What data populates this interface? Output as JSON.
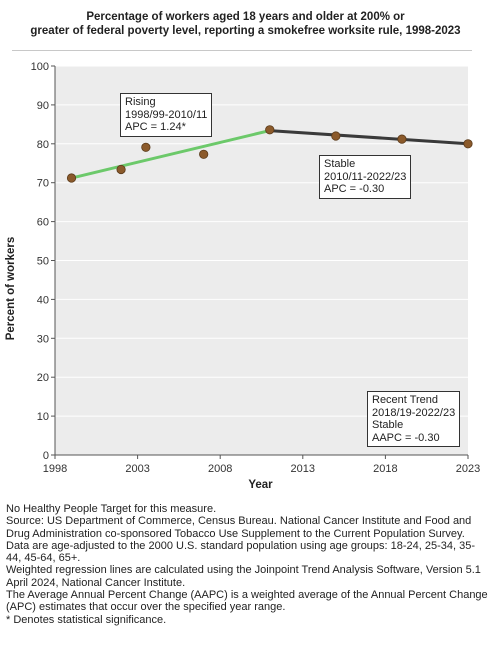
{
  "title_lines": [
    "Percentage of workers aged 18 years and older at 200% or",
    "greater of federal poverty level, reporting a smokefree worksite rule, 1998-2023"
  ],
  "colors": {
    "rising_line": "#6cc96a",
    "stable_line": "#3a3a3a",
    "point_fill": "#8b5a2b",
    "plot_bg": "#ececec",
    "grid": "#ffffff"
  },
  "chart_data": {
    "type": "scatter",
    "xlabel": "Year",
    "ylabel": "Percent of workers",
    "xlim": [
      1998,
      2023
    ],
    "ylim": [
      0,
      100
    ],
    "x_ticks": [
      1998,
      2003,
      2008,
      2013,
      2018,
      2023
    ],
    "y_ticks": [
      0,
      10,
      20,
      30,
      40,
      50,
      60,
      70,
      80,
      90,
      100
    ],
    "grid": true,
    "points": [
      {
        "x": 1999,
        "y": 71.2
      },
      {
        "x": 2002,
        "y": 73.4
      },
      {
        "x": 2003.5,
        "y": 79.1
      },
      {
        "x": 2007,
        "y": 77.3
      },
      {
        "x": 2011,
        "y": 83.6
      },
      {
        "x": 2015,
        "y": 82.0
      },
      {
        "x": 2019,
        "y": 81.2
      },
      {
        "x": 2023,
        "y": 80.0
      }
    ],
    "trend_lines": [
      {
        "segment": "rising",
        "x": [
          1999,
          2011
        ],
        "y": [
          71.2,
          83.4
        ]
      },
      {
        "segment": "stable",
        "x": [
          2011,
          2023
        ],
        "y": [
          83.4,
          80.0
        ]
      }
    ],
    "annotations": [
      {
        "id": "rising",
        "lines": [
          "Rising",
          "1998/99-2010/11",
          "APC =  1.24*"
        ]
      },
      {
        "id": "stable",
        "lines": [
          "Stable",
          "2010/11-2022/23",
          "APC = -0.30"
        ]
      },
      {
        "id": "recent",
        "lines": [
          "Recent Trend",
          "2018/19-2022/23",
          "Stable",
          "AAPC = -0.30"
        ]
      }
    ]
  },
  "notes": [
    "No Healthy People Target for this measure.",
    "Source: US Department of Commerce, Census Bureau. National Cancer Institute and Food and Drug Administration co-sponsored Tobacco Use Supplement to the Current Population Survey.",
    "Data are age-adjusted to the 2000 U.S. standard population using age groups: 18-24, 25-34, 35-44, 45-64, 65+.",
    "Weighted regression lines are calculated using the Joinpoint Trend Analysis Software, Version 5.1 April 2024, National Cancer Institute.",
    "The Average Annual Percent Change (AAPC) is a weighted average of the Annual Percent Change (APC) estimates that occur over the specified year range.",
    "* Denotes statistical significance."
  ]
}
